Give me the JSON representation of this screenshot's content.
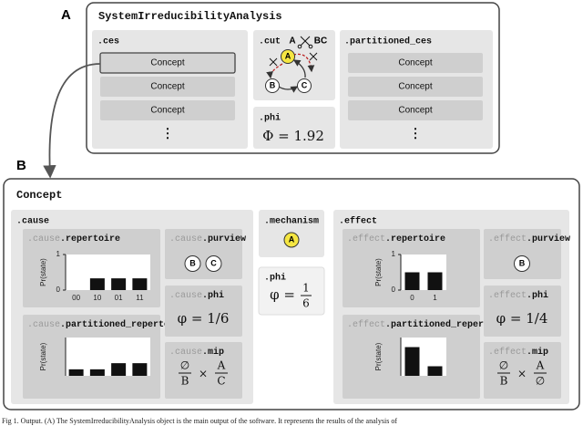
{
  "panel_a": {
    "label": "A",
    "title": "SystemIrreducibilityAnalysis",
    "ces": {
      "title": ".ces",
      "items": [
        "Concept",
        "Concept",
        "Concept"
      ],
      "more": "⋮"
    },
    "cut": {
      "title": ".cut",
      "from": "A",
      "to": "BC",
      "nodes": [
        "A",
        "B",
        "C"
      ]
    },
    "phi": {
      "title": ".phi",
      "value": "Φ = 1.92"
    },
    "partitioned_ces": {
      "title": ".partitioned_ces",
      "items": [
        "Concept",
        "Concept",
        "Concept"
      ],
      "more": "⋮"
    }
  },
  "panel_b": {
    "label": "B",
    "title": "Concept",
    "cause": {
      "title": ".cause",
      "repertoire": {
        "prefix": ".cause",
        "name": ".repertoire",
        "chart": {
          "type": "bar",
          "y_label": "Pr(state)",
          "categories": [
            "00",
            "10",
            "01",
            "11"
          ],
          "values": [
            0,
            0.33,
            0.33,
            0.33
          ],
          "ylim": [
            0,
            1
          ],
          "yticks": [
            0,
            1
          ],
          "color": "#111111"
        }
      },
      "purview": {
        "prefix": ".cause",
        "name": ".purview",
        "nodes": [
          "B",
          "C"
        ]
      },
      "phi": {
        "prefix": ".cause",
        "name": ".phi",
        "value": "φ = 1/6"
      },
      "partitioned_repertoire": {
        "prefix": ".cause",
        "name": ".partitioned_repertoire",
        "chart": {
          "type": "bar",
          "y_label": "Pr(state)",
          "categories": [
            null,
            null,
            null,
            null
          ],
          "values": [
            0.17,
            0.17,
            0.33,
            0.33
          ],
          "ylim": [
            0,
            1
          ],
          "color": "#111111"
        }
      },
      "mip": {
        "prefix": ".cause",
        "name": ".mip",
        "left_num": "∅",
        "left_den": "B",
        "times": "×",
        "right_num": "A",
        "right_den": "C"
      }
    },
    "mechanism": {
      "title": ".mechanism",
      "nodes": [
        "A"
      ]
    },
    "phi": {
      "title": ".phi",
      "lhs": "φ =",
      "numerator": "1",
      "denominator": "6"
    },
    "effect": {
      "title": ".effect",
      "repertoire": {
        "prefix": ".effect",
        "name": ".repertoire",
        "chart": {
          "type": "bar",
          "y_label": "Pr(state)",
          "categories": [
            "0",
            "1"
          ],
          "values": [
            0.5,
            0.5
          ],
          "ylim": [
            0,
            1
          ],
          "yticks": [
            0,
            1
          ],
          "color": "#111111"
        }
      },
      "purview": {
        "prefix": ".effect",
        "name": ".purview",
        "nodes": [
          "B"
        ]
      },
      "phi": {
        "prefix": ".effect",
        "name": ".phi",
        "value": "φ = 1/4"
      },
      "partitioned_repertoire": {
        "prefix": ".effect",
        "name": ".partitioned_repertoire",
        "chart": {
          "type": "bar",
          "y_label": "Pr(state)",
          "categories": [
            null,
            null
          ],
          "values": [
            0.75,
            0.25
          ],
          "ylim": [
            0,
            1
          ],
          "color": "#111111"
        }
      },
      "mip": {
        "prefix": ".effect",
        "name": ".mip",
        "left_num": "∅",
        "left_den": "B",
        "times": "×",
        "right_num": "A",
        "right_den": "∅"
      }
    }
  },
  "caption": "Fig 1. Output. (A) The SystemIrreducibilityAnalysis object is the main output of the software. It represents the results of the analysis of"
}
